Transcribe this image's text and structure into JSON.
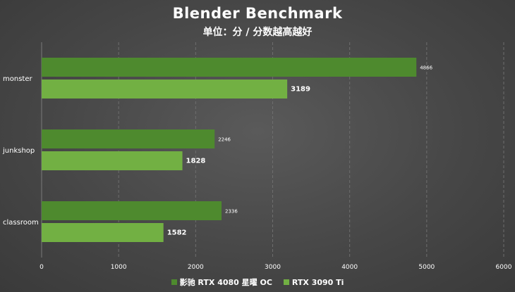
{
  "chart_data": {
    "type": "bar",
    "orientation": "horizontal",
    "title": "Blender Benchmark",
    "subtitle": "单位：分 / 分数越高越好",
    "categories": [
      "monster",
      "junkshop",
      "classroom"
    ],
    "series": [
      {
        "name": "影驰 RTX 4080 星曜 OC",
        "color": "#4e8a2e",
        "values": [
          4866,
          2246,
          2336
        ]
      },
      {
        "name": "RTX 3090 Ti",
        "color": "#72b043",
        "values": [
          3189,
          1828,
          1582
        ]
      }
    ],
    "xlim": [
      0,
      6000
    ],
    "xticks": [
      "0",
      "1000",
      "2000",
      "3000",
      "4000",
      "5000",
      "6000"
    ],
    "grid": true,
    "legend": "bottom"
  }
}
